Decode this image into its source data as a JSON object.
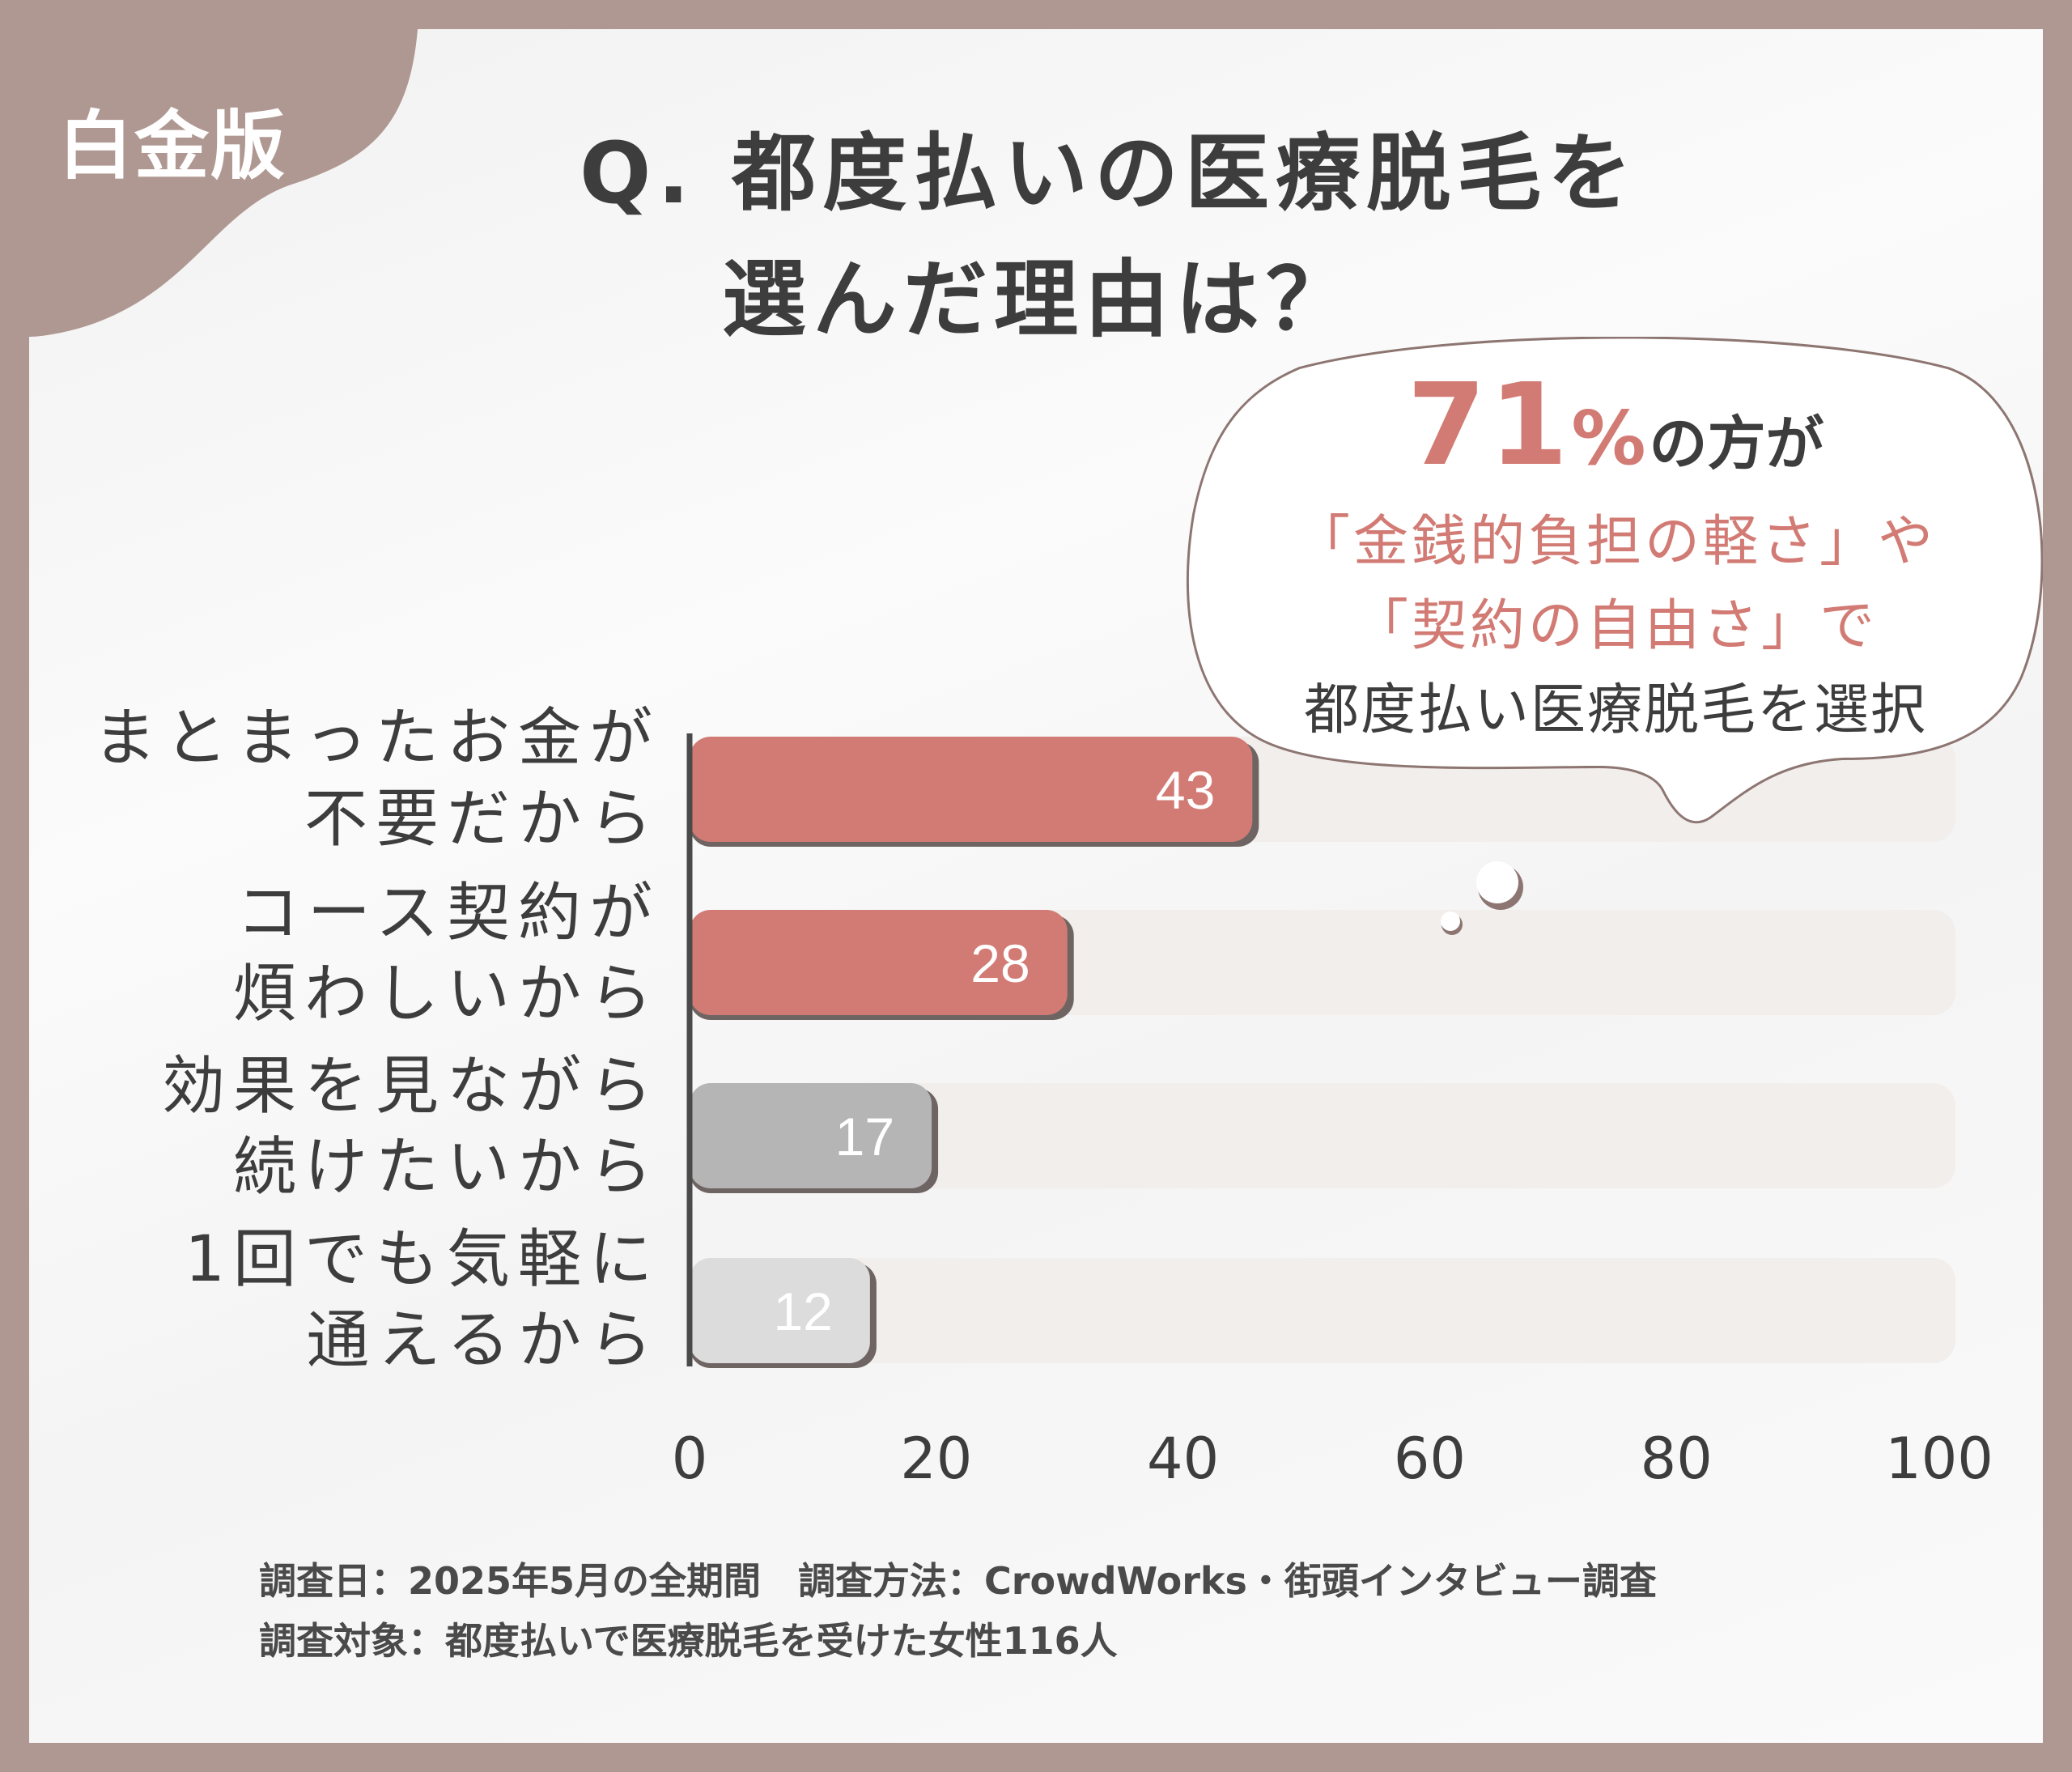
{
  "badge": "白金版",
  "title": {
    "line1": "Q. 都度払いの医療脱毛を",
    "line2": "選んだ理由は？"
  },
  "callout": {
    "percent": "71",
    "percent_sign": "%",
    "line1_suffix": "の方が",
    "line2": "「金銭的負担の軽さ」や",
    "line3": "「契約の自由さ」で",
    "line4": "都度払い医療脱毛を選択"
  },
  "colors": {
    "frame": "#b09892",
    "accent": "#d27b74",
    "gray": "#b5b5b5",
    "light_gray": "#dcdcdc",
    "track": "#f1eeec",
    "text": "#3d3d3d"
  },
  "chart_data": {
    "type": "bar",
    "orientation": "horizontal",
    "categories": [
      {
        "line1": "まとまったお金が",
        "line2": "不要だから"
      },
      {
        "line1": "コース契約が",
        "line2": "煩わしいから"
      },
      {
        "line1": "効果を見ながら",
        "line2": "続けたいから"
      },
      {
        "line1": "1回でも気軽に",
        "line2": "通えるから"
      }
    ],
    "values": [
      43,
      28,
      17,
      12
    ],
    "bar_colors": [
      "#d27b74",
      "#d27b74",
      "#b5b5b5",
      "#dcdcdc"
    ],
    "xlim": [
      0,
      100
    ],
    "xticks": [
      0,
      20,
      40,
      60,
      80,
      100
    ],
    "grid": false
  },
  "note": {
    "line1": "調査日：2025年5月の全期間　調査方法：CrowdWorks・街頭インタビュー調査",
    "line2": "調査対象：都度払いで医療脱毛を受けた女性116人"
  }
}
